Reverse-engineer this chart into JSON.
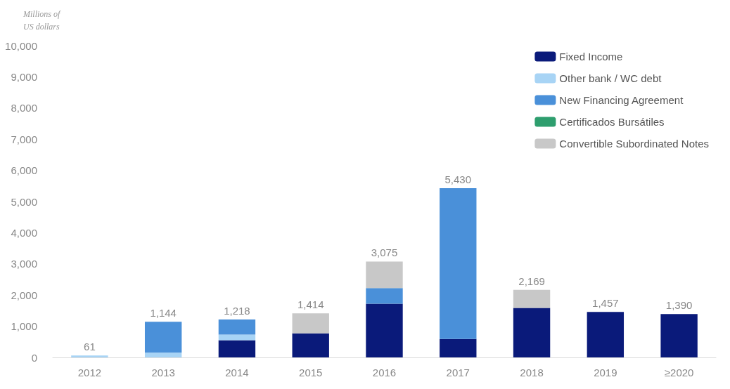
{
  "chart_data": {
    "type": "bar",
    "stacked": true,
    "ylabel": "Millions of\nUS dollars",
    "categories": [
      "2012",
      "2013",
      "2014",
      "2015",
      "2016",
      "2017",
      "2018",
      "2019",
      "≥2020"
    ],
    "series": [
      {
        "name": "Fixed Income",
        "color": "#0a1a7a",
        "values": [
          null,
          null,
          550,
          770,
          1725,
          590,
          1590,
          1457,
          1390
        ]
      },
      {
        "name": "Other bank / WC debt",
        "color": "#a8d4f5",
        "values": [
          61,
          150,
          180,
          null,
          null,
          null,
          null,
          null,
          null
        ]
      },
      {
        "name": "New Financing Agreement",
        "color": "#4a90d9",
        "values": [
          null,
          994,
          488,
          null,
          500,
          4840,
          null,
          null,
          null
        ]
      },
      {
        "name": "Certificados Bursátiles",
        "color": "#2e9e6e",
        "values": [
          null,
          null,
          null,
          null,
          null,
          null,
          null,
          null,
          null
        ]
      },
      {
        "name": "Convertible Subordinated Notes",
        "color": "#c8c8c8",
        "values": [
          null,
          null,
          null,
          644,
          850,
          null,
          579,
          null,
          null
        ]
      }
    ],
    "totals": [
      "61",
      "1,144",
      "1,218",
      "1,414",
      "3,075",
      "5,430",
      "2,169",
      "1,457",
      "1,390"
    ],
    "ylim": [
      0,
      10000
    ],
    "yticks": [
      0,
      {
        "value": 1000,
        "label": "1,000"
      },
      {
        "value": 2000,
        "label": "2,000"
      },
      {
        "value": 3000,
        "label": "3,000"
      },
      {
        "value": 4000,
        "label": "4,000"
      },
      {
        "value": 5000,
        "label": "5,000"
      },
      {
        "value": 6000,
        "label": "6,000"
      },
      {
        "value": 7000,
        "label": "7,000"
      },
      {
        "value": 8000,
        "label": "8,000"
      },
      {
        "value": 9000,
        "label": "9,000"
      },
      {
        "value": 10000,
        "label": "10,000"
      }
    ],
    "grid": false,
    "legend": "top right"
  }
}
